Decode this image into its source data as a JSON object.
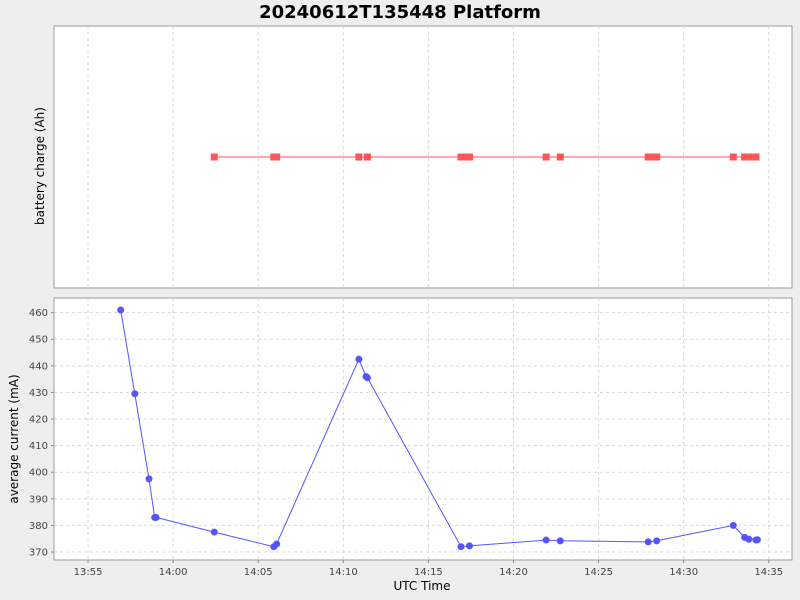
{
  "chart_data": {
    "type": "line",
    "title": "20240612T135448 Platform",
    "xlabel": "UTC Time",
    "x_ticks": [
      "13:55",
      "14:00",
      "14:05",
      "14:10",
      "14:15",
      "14:20",
      "14:25",
      "14:30",
      "14:35"
    ],
    "grid": true,
    "colors": {
      "background": "#eeeeee",
      "plot_bg": "#ffffff",
      "grid": "#d8d8d8",
      "series_top": "#ff5555",
      "series_bottom": "#5555ff"
    },
    "panels": [
      {
        "ylabel": "battery charge (Ah)",
        "y_ticks": [],
        "ylim": [
          0,
          1
        ],
        "series": [
          {
            "marker": "square",
            "x": [
              "14:02:25",
              "14:05:55",
              "14:06:05",
              "14:10:55",
              "14:11:25",
              "14:16:55",
              "14:17:05",
              "14:17:25",
              "14:21:55",
              "14:22:45",
              "14:27:55",
              "14:28:05",
              "14:28:25",
              "14:32:55",
              "14:33:35",
              "14:33:50",
              "14:34:15"
            ],
            "y": [
              0.5,
              0.5,
              0.5,
              0.5,
              0.5,
              0.5,
              0.5,
              0.5,
              0.5,
              0.5,
              0.5,
              0.5,
              0.5,
              0.5,
              0.5,
              0.5,
              0.5
            ]
          }
        ]
      },
      {
        "ylabel": "average current (mA)",
        "y_ticks": [
          "370",
          "380",
          "390",
          "400",
          "410",
          "420",
          "430",
          "440",
          "450",
          "460"
        ],
        "ylim": [
          367,
          465.5
        ],
        "series": [
          {
            "marker": "circle",
            "x": [
              "13:56:55",
              "13:57:45",
              "13:58:35",
              "13:58:55",
              "13:59:00",
              "14:02:25",
              "14:05:55",
              "14:06:05",
              "14:10:55",
              "14:11:20",
              "14:11:25",
              "14:16:55",
              "14:17:25",
              "14:21:55",
              "14:22:45",
              "14:27:55",
              "14:28:25",
              "14:32:55",
              "14:33:35",
              "14:33:50",
              "14:34:15",
              "14:34:20"
            ],
            "y": [
              461,
              429.5,
              397.5,
              383,
              383,
              377.5,
              372,
              373,
              442.5,
              436,
              435.5,
              372,
              372.3,
              374.5,
              374.2,
              373.8,
              374.2,
              380,
              375.5,
              374.8,
              374.5,
              374.6
            ]
          }
        ]
      }
    ]
  }
}
